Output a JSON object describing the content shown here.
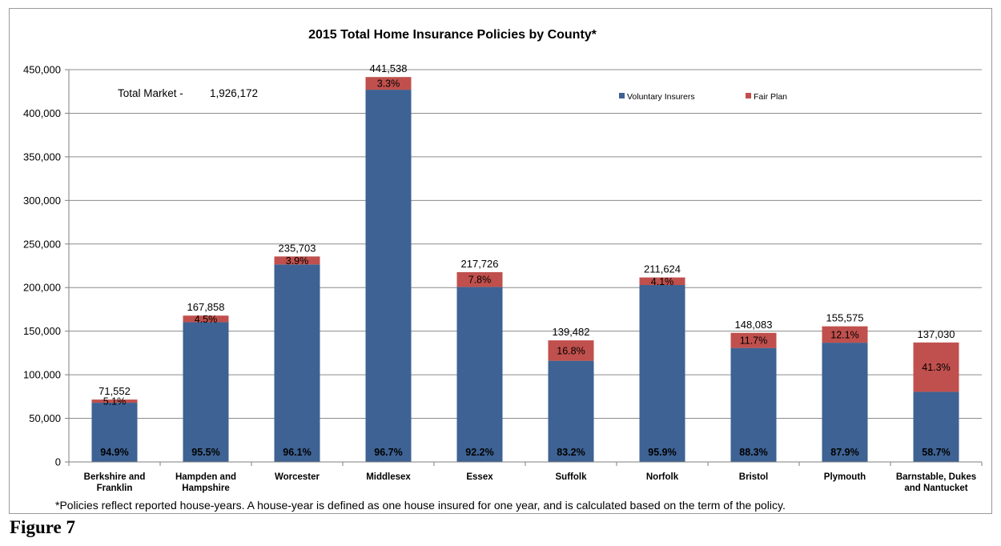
{
  "chart_data": {
    "type": "bar",
    "stacked": true,
    "title": "2015 Total Home Insurance Policies by County*",
    "xlabel": "",
    "ylabel": "",
    "ylim": [
      0,
      450000
    ],
    "yticks": [
      "0",
      "50,000",
      "100,000",
      "150,000",
      "200,000",
      "250,000",
      "300,000",
      "350,000",
      "400,000",
      "450,000"
    ],
    "grid": true,
    "legend_position": "top-right",
    "categories": [
      "Berkshire and Franklin",
      "Hampden and Hampshire",
      "Worcester",
      "Middlesex",
      "Essex",
      "Suffolk",
      "Norfolk",
      "Bristol",
      "Plymouth",
      "Barnstable, Dukes and Nantucket"
    ],
    "category_lines": [
      [
        "Berkshire and",
        "Franklin"
      ],
      [
        "Hampden and",
        "Hampshire"
      ],
      [
        "Worcester"
      ],
      [
        "Middlesex"
      ],
      [
        "Essex"
      ],
      [
        "Suffolk"
      ],
      [
        "Norfolk"
      ],
      [
        "Bristol"
      ],
      [
        "Plymouth"
      ],
      [
        "Barnstable, Dukes",
        "and Nantucket"
      ]
    ],
    "totals": [
      71552,
      167858,
      235703,
      441538,
      217726,
      139482,
      211624,
      148083,
      155575,
      137030
    ],
    "total_labels": [
      "71,552",
      "167,858",
      "235,703",
      "441,538",
      "217,726",
      "139,482",
      "211,624",
      "148,083",
      "155,575",
      "137,030"
    ],
    "series": [
      {
        "name": "Voluntary Insurers",
        "color": "#3d6293",
        "values": [
          67903,
          160304,
          226511,
          426967,
          200743,
          116049,
          202947,
          130757,
          136750,
          80437
        ],
        "labels": [
          "94.9%",
          "95.5%",
          "96.1%",
          "96.7%",
          "92.2%",
          "83.2%",
          "95.9%",
          "88.3%",
          "87.9%",
          "58.7%"
        ]
      },
      {
        "name": "Fair Plan",
        "color": "#c0504d",
        "values": [
          3649,
          7554,
          9192,
          14571,
          16983,
          23433,
          8677,
          17326,
          18825,
          56593
        ],
        "labels": [
          "5.1%",
          "4.5%",
          "3.9%",
          "3.3%",
          "7.8%",
          "16.8%",
          "4.1%",
          "11.7%",
          "12.1%",
          "41.3%"
        ]
      }
    ],
    "annotation": {
      "label": "Total Market -",
      "value": "1,926,172"
    },
    "footnote": "*Policies reflect reported house-years. A house-year is defined as one house insured for one year, and is calculated based on the term of the policy."
  },
  "figure_label": "Figure 7"
}
